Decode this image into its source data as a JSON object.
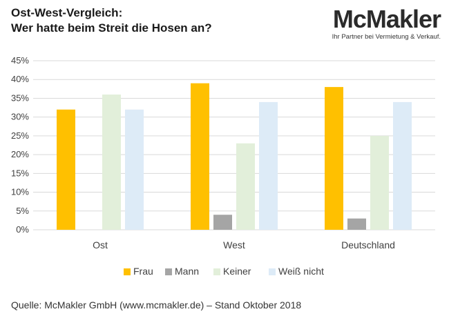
{
  "header": {
    "title_line1": "Ost-West-Vergleich:",
    "title_line2": "Wer hatte beim Streit die Hosen an?",
    "logo_text": "McMakler",
    "logo_tagline": "Ihr Partner bei Vermietung & Verkauf."
  },
  "footer": {
    "source": "Quelle: McMakler GmbH (www.mcmakler.de) – Stand Oktober 2018"
  },
  "chart_data": {
    "type": "bar",
    "title": "Ost-West-Vergleich: Wer hatte beim Streit die Hosen an?",
    "categories": [
      "Ost",
      "West",
      "Deutschland"
    ],
    "series": [
      {
        "name": "Frau",
        "color": "#FFC000",
        "values": [
          32,
          39,
          38
        ]
      },
      {
        "name": "Mann",
        "color": "#A5A5A5",
        "values": [
          0,
          4,
          3
        ]
      },
      {
        "name": "Keiner",
        "color": "#E2EFDA",
        "values": [
          36,
          23,
          25
        ]
      },
      {
        "name": "Weiß nicht",
        "color": "#DDEBF7",
        "values": [
          32,
          34,
          34
        ]
      }
    ],
    "yticks": [
      "0%",
      "5%",
      "10%",
      "15%",
      "20%",
      "25%",
      "30%",
      "35%",
      "40%",
      "45%"
    ],
    "ylim": [
      0,
      45
    ],
    "grid": true,
    "legend_position": "bottom"
  }
}
